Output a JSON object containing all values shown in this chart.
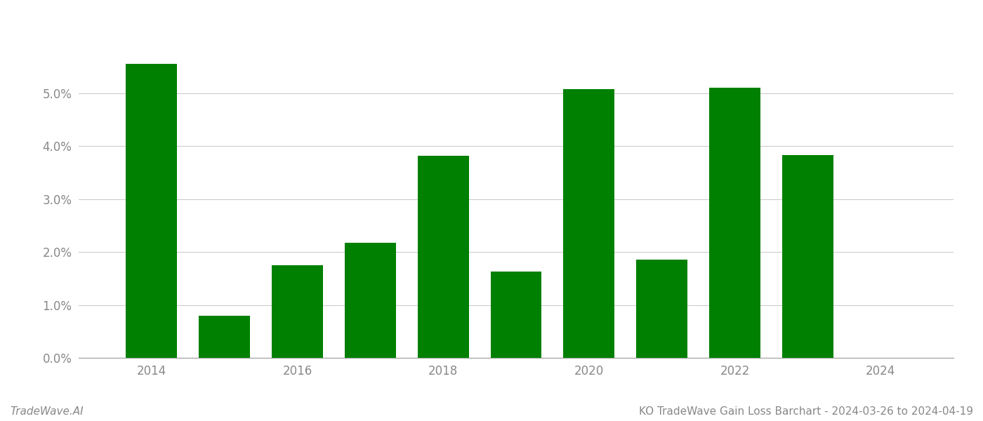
{
  "years": [
    2014,
    2015,
    2016,
    2017,
    2018,
    2019,
    2020,
    2021,
    2022,
    2023
  ],
  "values": [
    0.0555,
    0.008,
    0.0175,
    0.0217,
    0.0382,
    0.0163,
    0.0508,
    0.0185,
    0.051,
    0.0383
  ],
  "bar_color": "#008000",
  "title": "KO TradeWave Gain Loss Barchart - 2024-03-26 to 2024-04-19",
  "watermark": "TradeWave.AI",
  "ylim": [
    0,
    0.062
  ],
  "ytick_values": [
    0.0,
    0.01,
    0.02,
    0.03,
    0.04,
    0.05
  ],
  "xtick_years": [
    2014,
    2016,
    2018,
    2020,
    2022,
    2024
  ],
  "year_start": 2014,
  "bar_width": 0.7,
  "background_color": "#ffffff",
  "grid_color": "#cccccc",
  "axis_color": "#aaaaaa",
  "text_color": "#888888",
  "title_fontsize": 11,
  "watermark_fontsize": 11,
  "tick_fontsize": 12
}
